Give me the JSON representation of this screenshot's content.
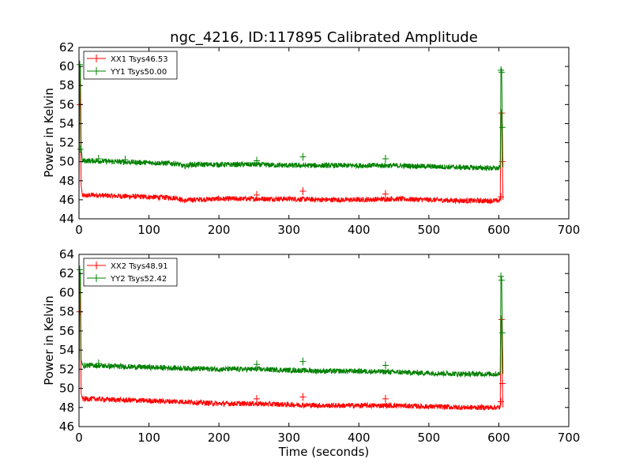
{
  "figure": {
    "title": "ngc_4216, ID:117895 Calibrated Amplitude"
  },
  "chart_data": [
    {
      "type": "line",
      "title": "ngc_4216, ID:117895 Calibrated Amplitude",
      "xlabel": "",
      "ylabel": "Power in Kelvin",
      "xlim": [
        0,
        700
      ],
      "ylim": [
        44,
        62
      ],
      "xticks": [
        0,
        100,
        200,
        300,
        400,
        500,
        600,
        700
      ],
      "yticks": [
        44,
        46,
        48,
        50,
        52,
        54,
        56,
        58,
        60,
        62
      ],
      "grid": false,
      "legend_position": "top-left",
      "series": [
        {
          "name": "XX1 Tsys46.53",
          "color": "#ff0000",
          "x": [
            0,
            1,
            2,
            3,
            5,
            20,
            50,
            100,
            140,
            150,
            160,
            200,
            250,
            300,
            350,
            400,
            450,
            500,
            550,
            600,
            602,
            603,
            604,
            605,
            606
          ],
          "y": [
            46.5,
            59.5,
            55.5,
            47.5,
            46.4,
            46.5,
            46.4,
            46.3,
            46.2,
            45.9,
            46.0,
            46.1,
            46.1,
            46.1,
            46.0,
            46.0,
            46.1,
            46.0,
            45.9,
            45.9,
            46.0,
            55.2,
            55.2,
            50.0,
            46.0
          ],
          "markers": [
            [
              1,
              56.0
            ],
            [
              254,
              46.5
            ],
            [
              320,
              46.9
            ],
            [
              438,
              46.6
            ],
            [
              603,
              46.3
            ],
            [
              604,
              55.1
            ],
            [
              605,
              50.0
            ]
          ]
        },
        {
          "name": "YY1 Tsys50.00",
          "color": "#008000",
          "x": [
            0,
            1,
            2,
            3,
            5,
            20,
            50,
            100,
            140,
            150,
            160,
            200,
            250,
            300,
            350,
            400,
            450,
            500,
            550,
            600,
            602,
            603,
            604,
            605,
            606
          ],
          "y": [
            50.0,
            60.2,
            60.0,
            51.5,
            50.1,
            50.1,
            50.0,
            49.9,
            49.8,
            49.5,
            49.7,
            49.7,
            49.7,
            49.6,
            49.6,
            49.6,
            49.6,
            49.5,
            49.4,
            49.3,
            49.5,
            59.5,
            59.6,
            53.5,
            49.4
          ],
          "markers": [
            [
              1,
              60.2
            ],
            [
              2,
              51.3
            ],
            [
              28,
              50.3
            ],
            [
              66,
              50.2
            ],
            [
              254,
              50.1
            ],
            [
              320,
              50.5
            ],
            [
              438,
              50.3
            ],
            [
              603,
              59.6
            ],
            [
              604,
              59.4
            ],
            [
              605,
              53.6
            ]
          ]
        }
      ]
    },
    {
      "type": "line",
      "title": "",
      "xlabel": "Time (seconds)",
      "ylabel": "Power in Kelvin",
      "xlim": [
        0,
        700
      ],
      "ylim": [
        46,
        64
      ],
      "xticks": [
        0,
        100,
        200,
        300,
        400,
        500,
        600,
        700
      ],
      "yticks": [
        46,
        48,
        50,
        52,
        54,
        56,
        58,
        60,
        62,
        64
      ],
      "grid": false,
      "legend_position": "top-left",
      "series": [
        {
          "name": "XX2 Tsys48.91",
          "color": "#ff0000",
          "x": [
            0,
            1,
            2,
            3,
            5,
            20,
            50,
            100,
            150,
            200,
            250,
            300,
            350,
            400,
            450,
            500,
            550,
            600,
            602,
            603,
            604,
            605,
            606
          ],
          "y": [
            48.9,
            62.0,
            58.0,
            49.5,
            48.9,
            48.9,
            48.8,
            48.7,
            48.6,
            48.4,
            48.4,
            48.3,
            48.2,
            48.2,
            48.2,
            48.1,
            48.0,
            48.0,
            48.0,
            57.2,
            57.2,
            50.5,
            48.0
          ],
          "markers": [
            [
              1,
              58.0
            ],
            [
              254,
              48.9
            ],
            [
              320,
              49.1
            ],
            [
              438,
              48.9
            ],
            [
              603,
              48.6
            ],
            [
              604,
              57.2
            ],
            [
              605,
              50.5
            ]
          ]
        },
        {
          "name": "YY2 Tsys52.42",
          "color": "#008000",
          "x": [
            0,
            1,
            2,
            3,
            5,
            20,
            50,
            100,
            150,
            200,
            250,
            300,
            350,
            400,
            450,
            500,
            550,
            600,
            602,
            603,
            604,
            605,
            606
          ],
          "y": [
            52.4,
            62.5,
            62.0,
            53.0,
            52.4,
            52.4,
            52.3,
            52.2,
            52.1,
            52.0,
            52.0,
            51.9,
            51.8,
            51.8,
            51.7,
            51.6,
            51.5,
            51.5,
            51.6,
            61.6,
            61.5,
            55.8,
            51.5
          ],
          "markers": [
            [
              1,
              62.4
            ],
            [
              28,
              52.6
            ],
            [
              254,
              52.5
            ],
            [
              320,
              52.8
            ],
            [
              438,
              52.4
            ],
            [
              603,
              61.7
            ],
            [
              604,
              61.3
            ],
            [
              605,
              55.8
            ]
          ]
        }
      ]
    }
  ]
}
